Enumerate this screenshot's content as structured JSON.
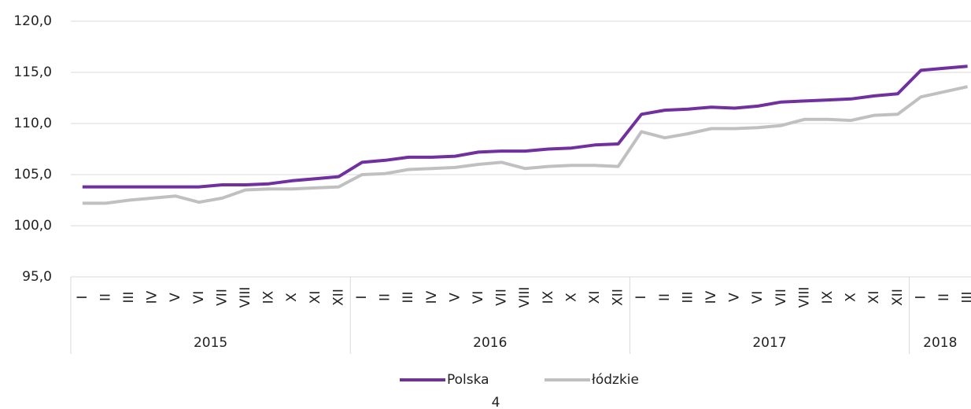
{
  "chart_data": {
    "type": "line",
    "groups": [
      {
        "label": "2015",
        "categories": [
          "I",
          "II",
          "III",
          "IV",
          "V",
          "VI",
          "VII",
          "VIII",
          "IX",
          "X",
          "XI",
          "XII"
        ]
      },
      {
        "label": "2016",
        "categories": [
          "I",
          "II",
          "III",
          "IV",
          "V",
          "VI",
          "VII",
          "VIII",
          "IX",
          "X",
          "XI",
          "XII"
        ]
      },
      {
        "label": "2017",
        "categories": [
          "I",
          "II",
          "III",
          "IV",
          "V",
          "VI",
          "VII",
          "VIII",
          "IX",
          "X",
          "XI",
          "XII"
        ]
      },
      {
        "label": "2018",
        "categories": [
          "I",
          "II",
          "III"
        ]
      }
    ],
    "series": [
      {
        "name": "Polska",
        "color": "#7030a0",
        "values": [
          103.8,
          103.8,
          103.8,
          103.8,
          103.8,
          103.8,
          104.0,
          104.0,
          104.1,
          104.4,
          104.6,
          104.8,
          106.2,
          106.4,
          106.7,
          106.7,
          106.8,
          107.2,
          107.3,
          107.3,
          107.5,
          107.6,
          107.9,
          108.0,
          110.9,
          111.3,
          111.4,
          111.6,
          111.5,
          111.7,
          112.1,
          112.2,
          112.3,
          112.4,
          112.7,
          112.9,
          115.2,
          115.4,
          115.6
        ]
      },
      {
        "name": "łódzkie",
        "color": "#c0c0c0",
        "values": [
          102.2,
          102.2,
          102.5,
          102.7,
          102.9,
          102.3,
          102.7,
          103.5,
          103.6,
          103.6,
          103.7,
          103.8,
          105.0,
          105.1,
          105.5,
          105.6,
          105.7,
          106.0,
          106.2,
          105.6,
          105.8,
          105.9,
          105.9,
          105.8,
          109.2,
          108.6,
          109.0,
          109.5,
          109.5,
          109.6,
          109.8,
          110.4,
          110.4,
          110.3,
          110.8,
          110.9,
          112.6,
          113.1,
          113.6
        ]
      }
    ],
    "ylim": [
      95,
      120
    ],
    "yticks": [
      {
        "value": 95,
        "label": "95,0"
      },
      {
        "value": 100,
        "label": "100,0"
      },
      {
        "value": 105,
        "label": "105,0"
      },
      {
        "value": 110,
        "label": "110,0"
      },
      {
        "value": 115,
        "label": "115,0"
      },
      {
        "value": 120,
        "label": "120,0"
      }
    ],
    "grid": true,
    "legend": "bottom"
  },
  "page_number": "4"
}
